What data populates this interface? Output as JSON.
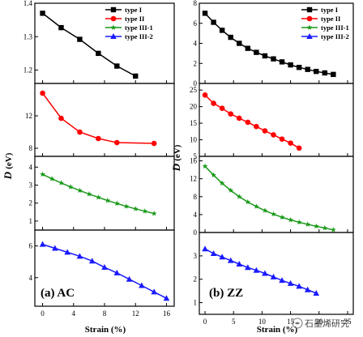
{
  "chart_data": [
    {
      "type": "line",
      "figure": "(a) AC",
      "xlabel": "Strain (%)",
      "xlim": [
        -1,
        17
      ],
      "xticks": [
        "0",
        "4",
        "8",
        "12",
        "16"
      ],
      "ylabel_var": "D",
      "ylabel_unit": "(eV)",
      "panels": [
        {
          "ylim": [
            1.16,
            1.4
          ],
          "yticks": [
            "1.2",
            "1.3",
            "1.4"
          ],
          "yticks_v": [
            1.2,
            1.3,
            1.4
          ],
          "series": [
            {
              "name": "type I",
              "color": "#000000",
              "marker": "square",
              "x": [
                0,
                2.4,
                4.8,
                7.2,
                9.6,
                12
              ],
              "y": [
                1.37,
                1.327,
                1.292,
                1.25,
                1.212,
                1.182
              ]
            }
          ]
        },
        {
          "ylim": [
            7,
            16
          ],
          "yticks": [
            "8",
            "12"
          ],
          "yticks_v": [
            8,
            12
          ],
          "series": [
            {
              "name": "type II",
              "color": "#ff0000",
              "marker": "circle",
              "x": [
                0,
                2.4,
                4.8,
                7.2,
                9.6,
                14.4
              ],
              "y": [
                14.8,
                11.7,
                10.0,
                9.2,
                8.7,
                8.6
              ]
            }
          ]
        },
        {
          "ylim": [
            0.5,
            4.6
          ],
          "yticks": [
            "1",
            "2",
            "3",
            "4"
          ],
          "yticks_v": [
            1,
            2,
            3,
            4
          ],
          "series": [
            {
              "name": "type III-1",
              "color": "#1a9a1a",
              "marker": "star",
              "x": [
                0,
                1.2,
                2.4,
                3.6,
                4.8,
                6.0,
                7.2,
                8.4,
                9.6,
                10.8,
                12.0,
                13.2,
                14.4
              ],
              "y": [
                3.6,
                3.35,
                3.12,
                2.9,
                2.7,
                2.5,
                2.32,
                2.14,
                1.98,
                1.82,
                1.68,
                1.55,
                1.42
              ]
            }
          ]
        },
        {
          "ylim": [
            2.2,
            7.0
          ],
          "yticks": [
            "4",
            "6"
          ],
          "yticks_v": [
            4,
            6
          ],
          "series": [
            {
              "name": "type III-2",
              "color": "#1a1aff",
              "marker": "triangle",
              "x": [
                0,
                1.6,
                3.2,
                4.8,
                6.4,
                8.0,
                9.6,
                11.2,
                12.8,
                14.4,
                16.0
              ],
              "y": [
                6.1,
                5.85,
                5.6,
                5.35,
                5.05,
                4.65,
                4.3,
                3.9,
                3.5,
                3.1,
                2.7
              ]
            }
          ]
        }
      ]
    },
    {
      "type": "line",
      "figure": "(b) ZZ",
      "xlabel": "Strain (%)",
      "xlim": [
        -1,
        26
      ],
      "xticks": [
        "0",
        "5",
        "10",
        "15",
        "20",
        "25"
      ],
      "ylabel_var": "D",
      "ylabel_unit": "(eV)",
      "panels": [
        {
          "ylim": [
            0,
            8
          ],
          "yticks": [
            "0",
            "2",
            "4",
            "6",
            "8"
          ],
          "yticks_v": [
            0,
            2,
            4,
            6,
            8
          ],
          "series": [
            {
              "name": "type I",
              "color": "#000000",
              "marker": "square",
              "x": [
                0,
                1.5,
                3,
                4.5,
                6,
                7.5,
                9,
                10.5,
                12,
                13.5,
                15,
                16.5,
                18,
                19.5,
                21,
                22.5
              ],
              "y": [
                7.0,
                6.1,
                5.3,
                4.6,
                4.0,
                3.5,
                3.1,
                2.75,
                2.45,
                2.15,
                1.85,
                1.6,
                1.4,
                1.2,
                1.05,
                0.9
              ]
            }
          ]
        },
        {
          "ylim": [
            5,
            27
          ],
          "yticks": [
            "5",
            "10",
            "15",
            "20",
            "25"
          ],
          "yticks_v": [
            5,
            10,
            15,
            20,
            25
          ],
          "series": [
            {
              "name": "type II",
              "color": "#ff0000",
              "marker": "circle",
              "x": [
                0,
                1.5,
                3,
                4.5,
                6,
                7.5,
                9,
                10.5,
                12,
                13.5,
                15,
                16.5
              ],
              "y": [
                23.5,
                21.0,
                19.5,
                17.8,
                16.5,
                15.3,
                14.0,
                12.7,
                11.5,
                10.2,
                9.0,
                7.5
              ]
            }
          ]
        },
        {
          "ylim": [
            0,
            17
          ],
          "yticks": [
            "0",
            "4",
            "8",
            "12",
            "16"
          ],
          "yticks_v": [
            0,
            4,
            8,
            12,
            16
          ],
          "series": [
            {
              "name": "type III-1",
              "color": "#1a9a1a",
              "marker": "star",
              "x": [
                0,
                1.5,
                3,
                4.5,
                6,
                7.5,
                9,
                10.5,
                12,
                13.5,
                15,
                16.5,
                18,
                19.5,
                21,
                22.5
              ],
              "y": [
                14.8,
                12.8,
                11.0,
                9.4,
                8.0,
                6.8,
                5.8,
                4.9,
                4.1,
                3.4,
                2.8,
                2.3,
                1.8,
                1.4,
                1.0,
                0.6
              ]
            }
          ]
        },
        {
          "ylim": [
            0.5,
            4.0
          ],
          "yticks": [
            "1",
            "2",
            "3"
          ],
          "yticks_v": [
            1,
            2,
            3
          ],
          "series": [
            {
              "name": "type III-2",
              "color": "#1a1aff",
              "marker": "triangle",
              "x": [
                0,
                1.5,
                3,
                4.5,
                6,
                7.5,
                9,
                10.5,
                12,
                13.5,
                15,
                16.5,
                18,
                19.5
              ],
              "y": [
                3.3,
                3.1,
                2.95,
                2.8,
                2.65,
                2.5,
                2.38,
                2.25,
                2.1,
                1.95,
                1.82,
                1.7,
                1.55,
                1.4
              ]
            }
          ]
        }
      ]
    }
  ],
  "legend": [
    "type I",
    "type II",
    "type III-1",
    "type III-2"
  ],
  "watermark": "石墨烯研究"
}
